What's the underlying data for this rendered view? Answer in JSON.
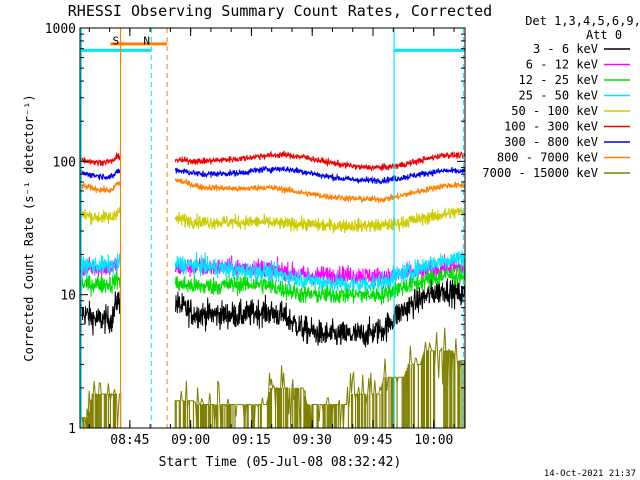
{
  "chart_data": {
    "type": "line",
    "title": "RHESSI Observing Summary Count Rates, Corrected",
    "xlabel": "Start Time (05-Jul-08 08:32:42)",
    "ylabel": "Corrected Count Rate (s⁻¹ detector⁻¹)",
    "x_units": "minutes after 08:32:42",
    "xlim_minutes": [
      0,
      95
    ],
    "ylim": [
      1,
      1000
    ],
    "y_scale": "log",
    "x_tick_labels": [
      "08:45",
      "09:00",
      "09:15",
      "09:30",
      "09:45",
      "10:00"
    ],
    "x_tick_minutes": [
      12.3,
      27.3,
      42.3,
      57.3,
      72.3,
      87.3
    ],
    "y_tick_labels": [
      "1",
      "10",
      "100",
      "1000"
    ],
    "y_tick_values": [
      1,
      10,
      100,
      1000
    ],
    "legend_header": [
      "Det 1,3,4,5,6,9,",
      "Att 0"
    ],
    "legend_position": "right",
    "timestamp": "14-Oct-2021 21:37",
    "gaps_minutes": [
      [
        10.0,
        23.5
      ]
    ],
    "night_markers": [
      {
        "label": "S",
        "minute": 10.0,
        "color": "#ff8000"
      },
      {
        "label": "N",
        "minute": 17.6,
        "color": "#00e6ff"
      }
    ],
    "bars": [
      {
        "name": "saa",
        "from": 7.5,
        "to": 21.5,
        "value": 760,
        "color": "#ff8000"
      },
      {
        "name": "night-left",
        "from": 0,
        "to": 17.6,
        "value": 680,
        "color": "#00e6ff"
      },
      {
        "name": "night-right",
        "from": 77.5,
        "to": 95,
        "value": 680,
        "color": "#00e6ff"
      }
    ],
    "vlines": [
      {
        "minute": 0.3,
        "color": "#00e6ff",
        "dash": false
      },
      {
        "minute": 10.0,
        "color": "#ff8000",
        "dash": false
      },
      {
        "minute": 17.6,
        "color": "#00e6ff",
        "dash": true
      },
      {
        "minute": 21.5,
        "color": "#ff8000",
        "dash": true
      },
      {
        "minute": 77.5,
        "color": "#00e6ff",
        "dash": false
      },
      {
        "minute": 94.6,
        "color": "#00e6ff",
        "dash": true
      }
    ],
    "series": [
      {
        "name": "3 - 6 keV",
        "color": "#000000",
        "noise": 0.05,
        "x": [
          0,
          4,
          8,
          9,
          24,
          28,
          40,
          45,
          50,
          55,
          60,
          65,
          70,
          75,
          78,
          82,
          86,
          90,
          94
        ],
        "y": [
          7.5,
          6.5,
          6.5,
          9,
          8.5,
          7.2,
          7.0,
          7.5,
          7.0,
          5.5,
          5.0,
          5.0,
          5.0,
          5.5,
          7.0,
          8.5,
          10,
          11,
          10
        ]
      },
      {
        "name": "6 - 12 keV",
        "color": "#ff00ff",
        "noise": 0.035,
        "x": [
          0,
          8,
          9,
          24,
          30,
          40,
          45,
          50,
          55,
          60,
          65,
          70,
          75,
          78,
          82,
          86,
          90,
          94
        ],
        "y": [
          16,
          16,
          17,
          16,
          16,
          16,
          16,
          15,
          14,
          14,
          14,
          14,
          13.5,
          14,
          14.5,
          15,
          16,
          16
        ]
      },
      {
        "name": "12 - 25 keV",
        "color": "#00dd00",
        "noise": 0.035,
        "x": [
          0,
          8,
          9,
          24,
          30,
          40,
          45,
          50,
          55,
          60,
          65,
          70,
          75,
          78,
          82,
          86,
          90,
          94
        ],
        "y": [
          12,
          12,
          13,
          12,
          11.5,
          12,
          12,
          11,
          10,
          10,
          10,
          10,
          10,
          11,
          12,
          13,
          14,
          14
        ]
      },
      {
        "name": "25 - 50 keV",
        "color": "#00e6ff",
        "noise": 0.035,
        "x": [
          0,
          8,
          9,
          24,
          30,
          40,
          45,
          50,
          55,
          60,
          65,
          70,
          75,
          78,
          82,
          86,
          90,
          94
        ],
        "y": [
          16.5,
          16.5,
          17,
          17,
          16.5,
          15,
          15,
          14,
          13,
          12.5,
          12,
          12,
          12.5,
          14,
          15,
          17,
          18,
          19
        ]
      },
      {
        "name": "50 - 100 keV",
        "color": "#cccc00",
        "noise": 0.025,
        "x": [
          0,
          4,
          8,
          9,
          24,
          30,
          40,
          45,
          50,
          55,
          60,
          65,
          70,
          75,
          78,
          82,
          86,
          90,
          94
        ],
        "y": [
          40,
          38,
          38,
          42,
          37,
          35,
          35,
          35,
          34,
          34,
          33,
          33,
          33,
          33,
          34,
          36,
          38,
          40,
          42
        ]
      },
      {
        "name": "100 - 300 keV",
        "color": "#ee0000",
        "noise": 0.012,
        "x": [
          0,
          4,
          8,
          9,
          24,
          30,
          40,
          45,
          50,
          55,
          60,
          65,
          70,
          75,
          78,
          82,
          86,
          90,
          94
        ],
        "y": [
          104,
          98,
          100,
          108,
          102,
          100,
          105,
          110,
          112,
          108,
          100,
          94,
          90,
          90,
          92,
          98,
          105,
          112,
          110
        ]
      },
      {
        "name": "300 - 800 keV",
        "color": "#0000ee",
        "noise": 0.012,
        "x": [
          0,
          4,
          8,
          9,
          24,
          30,
          40,
          45,
          50,
          55,
          60,
          65,
          70,
          75,
          78,
          82,
          86,
          90,
          94
        ],
        "y": [
          82,
          78,
          76,
          84,
          86,
          80,
          82,
          87,
          88,
          84,
          78,
          74,
          72,
          72,
          74,
          78,
          82,
          85,
          84
        ]
      },
      {
        "name": "800 - 7000 keV",
        "color": "#ff8000",
        "noise": 0.012,
        "x": [
          0,
          4,
          8,
          9,
          24,
          30,
          40,
          45,
          50,
          55,
          60,
          65,
          70,
          75,
          78,
          82,
          86,
          90,
          94
        ],
        "y": [
          66,
          62,
          60,
          68,
          72,
          64,
          62,
          64,
          62,
          58,
          55,
          53,
          52,
          52,
          54,
          58,
          62,
          66,
          66
        ]
      },
      {
        "name": "7000 - 15000 keV",
        "color": "#808000",
        "noise": 0,
        "x": [
          0,
          2,
          3,
          10,
          24,
          28,
          29,
          46,
          47,
          55,
          56,
          66,
          67,
          74,
          75,
          80,
          81,
          84,
          85,
          92,
          93,
          95
        ],
        "y": [
          1.2,
          1.2,
          1.8,
          1.8,
          1.6,
          1.6,
          1.5,
          1.5,
          2.0,
          2.0,
          1.5,
          1.5,
          1.8,
          1.8,
          2.4,
          2.4,
          3.0,
          3.0,
          3.8,
          3.8,
          3.2,
          3.2
        ]
      }
    ]
  }
}
